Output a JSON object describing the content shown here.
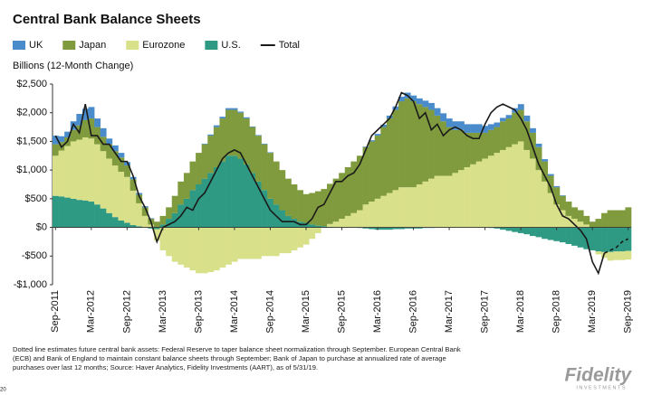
{
  "chart_data": {
    "type": "stacked-bar-line",
    "title": "Central Bank Balance Sheets",
    "y_label": "Billions (12-Month Change)",
    "categories": [
      "Sep-2011",
      null,
      null,
      null,
      null,
      null,
      "Mar-2012",
      null,
      null,
      null,
      null,
      null,
      "Sep-2012",
      null,
      null,
      null,
      null,
      null,
      "Mar-2013",
      null,
      null,
      null,
      null,
      null,
      "Sep-2013",
      null,
      null,
      null,
      null,
      null,
      "Mar-2014",
      null,
      null,
      null,
      null,
      null,
      "Sep-2014",
      null,
      null,
      null,
      null,
      null,
      "Mar-2015",
      null,
      null,
      null,
      null,
      null,
      "Sep-2015",
      null,
      null,
      null,
      null,
      null,
      "Mar-2016",
      null,
      null,
      null,
      null,
      null,
      "Sep-2016",
      null,
      null,
      null,
      null,
      null,
      "Mar-2017",
      null,
      null,
      null,
      null,
      null,
      "Sep-2017",
      null,
      null,
      null,
      null,
      null,
      "Mar-2018",
      null,
      null,
      null,
      null,
      null,
      "Sep-2018",
      null,
      null,
      null,
      null,
      null,
      "Mar-2019",
      null,
      null,
      null,
      null,
      null,
      "Sep-2019"
    ],
    "series": [
      {
        "name": "UK",
        "color": "#4a8ccb",
        "values": [
          150,
          100,
          100,
          150,
          200,
          200,
          200,
          150,
          150,
          100,
          100,
          80,
          60,
          40,
          30,
          20,
          10,
          0,
          0,
          0,
          0,
          0,
          0,
          0,
          0,
          10,
          20,
          30,
          30,
          30,
          30,
          20,
          20,
          10,
          10,
          10,
          10,
          0,
          0,
          0,
          0,
          0,
          0,
          0,
          0,
          0,
          0,
          0,
          0,
          0,
          0,
          0,
          10,
          20,
          30,
          40,
          50,
          60,
          80,
          100,
          100,
          100,
          110,
          120,
          130,
          140,
          150,
          150,
          150,
          150,
          150,
          150,
          120,
          100,
          80,
          60,
          60,
          80,
          100,
          100,
          80,
          60,
          40,
          30,
          20,
          10,
          0,
          0,
          0,
          0,
          0,
          0,
          0,
          0,
          0,
          0,
          0
        ]
      },
      {
        "name": "Japan",
        "color": "#7f9b3d",
        "values": [
          200,
          150,
          150,
          200,
          250,
          300,
          350,
          300,
          250,
          250,
          250,
          250,
          200,
          200,
          150,
          150,
          100,
          100,
          150,
          200,
          300,
          400,
          450,
          500,
          550,
          600,
          650,
          700,
          750,
          800,
          800,
          800,
          800,
          800,
          800,
          800,
          800,
          750,
          700,
          650,
          600,
          550,
          500,
          550,
          600,
          650,
          700,
          750,
          800,
          850,
          900,
          950,
          1000,
          1050,
          1100,
          1200,
          1300,
          1400,
          1500,
          1550,
          1500,
          1400,
          1300,
          1200,
          1050,
          950,
          850,
          750,
          700,
          600,
          550,
          500,
          450,
          450,
          450,
          500,
          500,
          550,
          550,
          500,
          450,
          400,
          350,
          300,
          300,
          250,
          250,
          200,
          200,
          150,
          100,
          150,
          250,
          300,
          300,
          300,
          350
        ]
      },
      {
        "name": "Eurozone",
        "color": "#d9e08a",
        "values": [
          700,
          800,
          900,
          1000,
          1050,
          1100,
          1100,
          1050,
          1000,
          950,
          900,
          850,
          800,
          600,
          400,
          200,
          50,
          -200,
          -400,
          -500,
          -600,
          -650,
          -700,
          -750,
          -800,
          -800,
          -780,
          -750,
          -700,
          -650,
          -600,
          -550,
          -550,
          -550,
          -550,
          -500,
          -500,
          -500,
          -450,
          -450,
          -400,
          -350,
          -300,
          -200,
          -100,
          0,
          50,
          100,
          150,
          200,
          250,
          300,
          400,
          450,
          500,
          550,
          600,
          650,
          700,
          700,
          700,
          750,
          800,
          850,
          900,
          900,
          900,
          950,
          1000,
          1050,
          1100,
          1150,
          1200,
          1250,
          1300,
          1350,
          1400,
          1450,
          1500,
          1350,
          1200,
          1000,
          800,
          600,
          400,
          300,
          200,
          150,
          100,
          50,
          0,
          -50,
          -100,
          -150,
          -150,
          -150,
          -150
        ]
      },
      {
        "name": "U.S.",
        "color": "#2f9a84",
        "values": [
          550,
          540,
          520,
          500,
          480,
          470,
          450,
          400,
          330,
          250,
          180,
          120,
          80,
          40,
          20,
          0,
          -20,
          -30,
          50,
          150,
          250,
          400,
          500,
          650,
          750,
          850,
          950,
          1050,
          1150,
          1250,
          1250,
          1200,
          1100,
          950,
          800,
          650,
          500,
          400,
          300,
          200,
          150,
          100,
          80,
          50,
          30,
          20,
          10,
          0,
          0,
          0,
          0,
          -10,
          -20,
          -30,
          -40,
          -40,
          -40,
          -30,
          -30,
          -20,
          -20,
          -20,
          -10,
          -10,
          0,
          0,
          0,
          0,
          0,
          0,
          0,
          0,
          0,
          -10,
          -20,
          -40,
          -60,
          -80,
          -100,
          -120,
          -150,
          -170,
          -200,
          -220,
          -240,
          -260,
          -290,
          -320,
          -350,
          -380,
          -400,
          -420,
          -430,
          -430,
          -420,
          -420,
          -410
        ]
      },
      {
        "name": "Total",
        "color": "#1a1a1a",
        "line": true,
        "values": [
          1600,
          1400,
          1500,
          1800,
          1650,
          2150,
          1600,
          1600,
          1450,
          1450,
          1300,
          1150,
          1150,
          900,
          550,
          350,
          100,
          -250,
          0,
          50,
          100,
          200,
          350,
          300,
          500,
          600,
          800,
          1000,
          1200,
          1300,
          1350,
          1300,
          1100,
          900,
          700,
          500,
          300,
          200,
          100,
          100,
          100,
          50,
          50,
          150,
          350,
          400,
          600,
          800,
          800,
          900,
          950,
          1100,
          1350,
          1600,
          1700,
          1800,
          1900,
          2100,
          2350,
          2300,
          2200,
          1900,
          2000,
          1700,
          1800,
          1600,
          1700,
          1750,
          1700,
          1600,
          1550,
          1550,
          1800,
          2000,
          2100,
          2150,
          2100,
          2050,
          1900,
          1700,
          1400,
          1100,
          900,
          700,
          400,
          200,
          150,
          50,
          -50,
          -200,
          -600,
          -800,
          -450,
          null,
          null,
          null,
          null
        ]
      }
    ],
    "projected_total": {
      "color": "#1a1a1a",
      "dashed": true,
      "values": [
        null,
        null,
        null,
        null,
        null,
        null,
        null,
        null,
        null,
        null,
        null,
        null,
        null,
        null,
        null,
        null,
        null,
        null,
        null,
        null,
        null,
        null,
        null,
        null,
        null,
        null,
        null,
        null,
        null,
        null,
        null,
        null,
        null,
        null,
        null,
        null,
        null,
        null,
        null,
        null,
        null,
        null,
        null,
        null,
        null,
        null,
        null,
        null,
        null,
        null,
        null,
        null,
        null,
        null,
        null,
        null,
        null,
        null,
        null,
        null,
        null,
        null,
        null,
        null,
        null,
        null,
        null,
        null,
        null,
        null,
        null,
        null,
        null,
        null,
        null,
        null,
        null,
        null,
        null,
        null,
        null,
        null,
        null,
        null,
        null,
        null,
        null,
        null,
        null,
        null,
        null,
        null,
        -450,
        -400,
        -350,
        -250,
        -200
      ]
    },
    "ylim": [
      -1000,
      2500
    ],
    "yticks": [
      {
        "value": 2500,
        "label": "$2,500"
      },
      {
        "value": 2000,
        "label": "$2,000"
      },
      {
        "value": 1500,
        "label": "$1,500"
      },
      {
        "value": 1000,
        "label": "$1,000"
      },
      {
        "value": 500,
        "label": "$500"
      },
      {
        "value": 0,
        "label": "$0"
      },
      {
        "value": -500,
        "label": "-$500"
      },
      {
        "value": -1000,
        "label": "-$1,000"
      }
    ],
    "grid": false,
    "footnote": [
      "Dotted line estimates future central bank assets: Federal Reserve  to taper balance sheet normalization through September. European Central Bank",
      "(ECB) and Bank of England to maintain constant balance sheets through September; Bank of Japan to purchase at annualized rate of average",
      "purchases over last 12 months; Source: Haver Analytics, Fidelity Investments (AART), as of 5/31/19."
    ],
    "page_number": "20",
    "logo": "Fidelity",
    "logo_sub": "INVESTMENTS"
  }
}
